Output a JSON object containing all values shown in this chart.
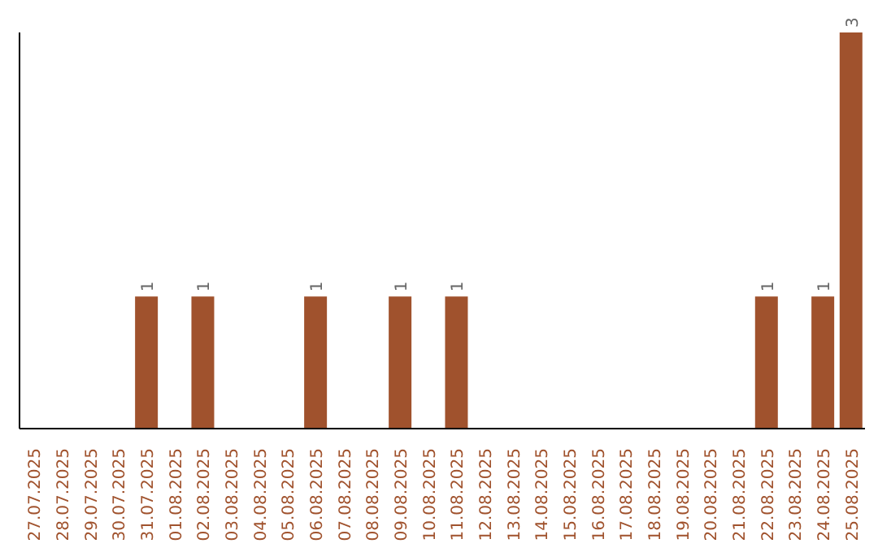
{
  "chart_data": {
    "type": "bar",
    "categories": [
      "27.07.2025",
      "28.07.2025",
      "29.07.2025",
      "30.07.2025",
      "31.07.2025",
      "01.08.2025",
      "02.08.2025",
      "03.08.2025",
      "04.08.2025",
      "05.08.2025",
      "06.08.2025",
      "07.08.2025",
      "08.08.2025",
      "09.08.2025",
      "10.08.2025",
      "11.08.2025",
      "12.08.2025",
      "13.08.2025",
      "14.08.2025",
      "15.08.2025",
      "16.08.2025",
      "17.08.2025",
      "18.08.2025",
      "19.08.2025",
      "20.08.2025",
      "21.08.2025",
      "22.08.2025",
      "23.08.2025",
      "24.08.2025",
      "25.08.2025"
    ],
    "values": [
      null,
      null,
      null,
      null,
      1,
      null,
      1,
      null,
      null,
      null,
      1,
      null,
      null,
      1,
      null,
      1,
      null,
      null,
      null,
      null,
      null,
      null,
      null,
      null,
      null,
      null,
      1,
      null,
      1,
      3
    ],
    "color": "#a0522d",
    "data_labels": true,
    "tick_labels": "x"
  }
}
